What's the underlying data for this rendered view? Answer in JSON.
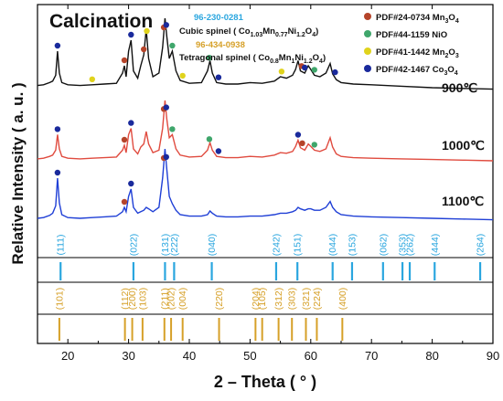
{
  "chart_data": {
    "type": "line",
    "title": "Calcination",
    "xlabel": "2 – Theta ( ° )",
    "ylabel": "Relative Intensity ( a. u. )",
    "xlim": [
      15,
      90
    ],
    "x_ticks": [
      20,
      30,
      40,
      50,
      60,
      70,
      80,
      90
    ],
    "grid": false,
    "series": [
      {
        "name": "900℃",
        "color": "#111111",
        "x": [
          15,
          16,
          17,
          17.5,
          18,
          18.3,
          18.6,
          19,
          20,
          22,
          24,
          26,
          28,
          29,
          29.3,
          29.6,
          30,
          30.4,
          30.8,
          31.5,
          32,
          32.5,
          32.9,
          33.3,
          34,
          35,
          35.6,
          36,
          36.3,
          36.7,
          37.2,
          37.8,
          38.5,
          40,
          42,
          43,
          43.4,
          43.8,
          44.5,
          46,
          48,
          50,
          52,
          54,
          55,
          56,
          57,
          57.5,
          57.9,
          58.3,
          59,
          59.6,
          60,
          60.6,
          61.5,
          62.5,
          63.2,
          63.6,
          64.2,
          65,
          67,
          70,
          75,
          80,
          85,
          90
        ],
        "values": [
          0.08,
          0.09,
          0.12,
          0.14,
          0.22,
          0.55,
          0.25,
          0.12,
          0.09,
          0.08,
          0.09,
          0.1,
          0.11,
          0.25,
          0.35,
          0.2,
          0.55,
          0.7,
          0.28,
          0.18,
          0.35,
          0.5,
          0.85,
          0.45,
          0.2,
          0.25,
          0.6,
          1.0,
          0.75,
          0.45,
          0.55,
          0.28,
          0.15,
          0.11,
          0.12,
          0.28,
          0.42,
          0.25,
          0.12,
          0.1,
          0.1,
          0.12,
          0.11,
          0.14,
          0.2,
          0.18,
          0.22,
          0.3,
          0.42,
          0.28,
          0.25,
          0.35,
          0.3,
          0.22,
          0.2,
          0.25,
          0.38,
          0.24,
          0.16,
          0.12,
          0.1,
          0.09,
          0.07,
          0.05,
          0.04,
          0.03
        ]
      },
      {
        "name": "1000℃",
        "color": "#e04b3f",
        "x": [
          15,
          16,
          17,
          17.5,
          18,
          18.3,
          18.6,
          19,
          20,
          22,
          24,
          26,
          28,
          29,
          29.3,
          29.6,
          30,
          30.4,
          30.8,
          31.5,
          32,
          32.5,
          32.9,
          33.3,
          34,
          35,
          35.6,
          36,
          36.3,
          36.7,
          37.2,
          37.8,
          38.5,
          40,
          42,
          43,
          43.4,
          43.8,
          44.5,
          46,
          48,
          50,
          52,
          54,
          55,
          56,
          57,
          57.5,
          57.9,
          58.3,
          59,
          59.6,
          60,
          60.6,
          61.5,
          62.5,
          63.2,
          63.6,
          64.2,
          65,
          67,
          70,
          75,
          80,
          85,
          90
        ],
        "values": [
          0.06,
          0.07,
          0.1,
          0.12,
          0.2,
          0.45,
          0.22,
          0.1,
          0.07,
          0.06,
          0.07,
          0.08,
          0.09,
          0.2,
          0.28,
          0.16,
          0.45,
          0.55,
          0.22,
          0.14,
          0.25,
          0.3,
          0.5,
          0.3,
          0.16,
          0.2,
          0.55,
          1.0,
          0.7,
          0.4,
          0.45,
          0.22,
          0.12,
          0.09,
          0.1,
          0.2,
          0.32,
          0.2,
          0.1,
          0.08,
          0.08,
          0.1,
          0.09,
          0.12,
          0.16,
          0.15,
          0.18,
          0.26,
          0.36,
          0.24,
          0.2,
          0.3,
          0.26,
          0.2,
          0.18,
          0.22,
          0.4,
          0.25,
          0.14,
          0.1,
          0.08,
          0.07,
          0.06,
          0.05,
          0.04,
          0.03
        ]
      },
      {
        "name": "1100℃",
        "color": "#1f3fd6",
        "x": [
          15,
          16,
          17,
          17.5,
          18,
          18.3,
          18.6,
          19,
          20,
          22,
          24,
          26,
          28,
          29,
          29.3,
          29.6,
          30,
          30.4,
          30.8,
          31.5,
          32,
          32.5,
          32.9,
          33.3,
          34,
          35,
          35.6,
          36,
          36.3,
          36.7,
          37.2,
          37.8,
          38.5,
          40,
          42,
          43,
          43.4,
          43.8,
          44.5,
          46,
          48,
          50,
          52,
          54,
          55,
          56,
          57,
          57.5,
          57.9,
          58.3,
          59,
          59.6,
          60,
          60.6,
          61.5,
          62.5,
          63.2,
          63.6,
          64.2,
          65,
          67,
          70,
          75,
          80,
          85,
          90
        ],
        "values": [
          0.05,
          0.06,
          0.09,
          0.12,
          0.22,
          0.6,
          0.26,
          0.1,
          0.06,
          0.05,
          0.06,
          0.07,
          0.08,
          0.14,
          0.2,
          0.14,
          0.35,
          0.45,
          0.2,
          0.12,
          0.14,
          0.16,
          0.2,
          0.18,
          0.14,
          0.2,
          0.6,
          1.0,
          0.72,
          0.35,
          0.25,
          0.16,
          0.1,
          0.08,
          0.08,
          0.1,
          0.15,
          0.12,
          0.08,
          0.07,
          0.07,
          0.08,
          0.08,
          0.1,
          0.12,
          0.12,
          0.14,
          0.16,
          0.2,
          0.18,
          0.16,
          0.18,
          0.18,
          0.16,
          0.16,
          0.2,
          0.28,
          0.2,
          0.14,
          0.1,
          0.08,
          0.07,
          0.06,
          0.05,
          0.04,
          0.03
        ]
      }
    ],
    "legend_top_left": [
      {
        "text": "96-230-0281",
        "color": "#2aa6df"
      },
      {
        "text_pre": "Cubic spinel ( Co",
        "text_sub1": "1.03",
        "text_mid1": "Mn",
        "text_sub2": "0.77",
        "text_mid2": "Ni",
        "text_sub3": "1.2",
        "text_mid3": "O",
        "text_sub4": "4",
        "text_post": ")",
        "color": "#111111"
      },
      {
        "text": "96-434-0938",
        "color": "#d6a028"
      },
      {
        "text_pre": "Tetragonal spinel ( Co",
        "text_sub1": "0.8",
        "text_mid1": "Mn",
        "text_sub2": "1",
        "text_mid2": "Ni",
        "text_sub3": "1.2",
        "text_mid3": "O",
        "text_sub4": "4",
        "text_post": ")",
        "color": "#111111"
      }
    ],
    "legend_markers": [
      {
        "text": "PDF#24-0734 Mn",
        "sub": "3",
        "tail": "O",
        "sub2": "4",
        "color": "#b5442a"
      },
      {
        "text": "PDF#44-1159 NiO",
        "sub": "",
        "tail": "",
        "sub2": "",
        "color": "#3fa66b"
      },
      {
        "text": "PDF#41-1442 Mn",
        "sub": "2",
        "tail": "O",
        "sub2": "3",
        "color": "#e0d31c"
      },
      {
        "text": "PDF#42-1467 Co",
        "sub": "3",
        "tail": "O",
        "sub2": "4",
        "color": "#1a2a9c"
      }
    ],
    "markers": [
      {
        "series": 0,
        "x": 18.3,
        "color": "#1a2a9c"
      },
      {
        "series": 0,
        "x": 24.0,
        "color": "#e0d31c"
      },
      {
        "series": 0,
        "x": 29.3,
        "color": "#b5442a"
      },
      {
        "series": 0,
        "x": 30.4,
        "color": "#1a2a9c"
      },
      {
        "series": 0,
        "x": 32.5,
        "color": "#b5442a"
      },
      {
        "series": 0,
        "x": 33.0,
        "color": "#e0d31c"
      },
      {
        "series": 0,
        "x": 35.8,
        "color": "#b5442a"
      },
      {
        "series": 0,
        "x": 36.2,
        "color": "#1a2a9c"
      },
      {
        "series": 0,
        "x": 37.2,
        "color": "#3fa66b"
      },
      {
        "series": 0,
        "x": 38.9,
        "color": "#e0d31c"
      },
      {
        "series": 0,
        "x": 43.3,
        "color": "#3fa66b"
      },
      {
        "series": 0,
        "x": 44.8,
        "color": "#1a2a9c"
      },
      {
        "series": 0,
        "x": 55.2,
        "color": "#e0d31c"
      },
      {
        "series": 0,
        "x": 58.5,
        "color": "#b5442a"
      },
      {
        "series": 0,
        "x": 59.0,
        "color": "#1a2a9c"
      },
      {
        "series": 0,
        "x": 60.6,
        "color": "#3fa66b"
      },
      {
        "series": 0,
        "x": 64.0,
        "color": "#1a2a9c"
      },
      {
        "series": 1,
        "x": 18.3,
        "color": "#1a2a9c"
      },
      {
        "series": 1,
        "x": 29.3,
        "color": "#b5442a"
      },
      {
        "series": 1,
        "x": 30.4,
        "color": "#1a2a9c"
      },
      {
        "series": 1,
        "x": 35.8,
        "color": "#b5442a"
      },
      {
        "series": 1,
        "x": 36.2,
        "color": "#1a2a9c"
      },
      {
        "series": 1,
        "x": 37.2,
        "color": "#3fa66b"
      },
      {
        "series": 1,
        "x": 43.3,
        "color": "#3fa66b"
      },
      {
        "series": 1,
        "x": 44.8,
        "color": "#1a2a9c"
      },
      {
        "series": 1,
        "x": 57.9,
        "color": "#1a2a9c"
      },
      {
        "series": 1,
        "x": 58.6,
        "color": "#b5442a"
      },
      {
        "series": 1,
        "x": 60.6,
        "color": "#3fa66b"
      },
      {
        "series": 2,
        "x": 18.3,
        "color": "#1a2a9c"
      },
      {
        "series": 2,
        "x": 29.3,
        "color": "#b5442a"
      },
      {
        "series": 2,
        "x": 30.4,
        "color": "#1a2a9c"
      },
      {
        "series": 2,
        "x": 35.8,
        "color": "#b5442a"
      },
      {
        "series": 2,
        "x": 36.2,
        "color": "#1a2a9c"
      }
    ],
    "cubic_reflections": [
      {
        "x": 18.8,
        "label": "(111)"
      },
      {
        "x": 30.8,
        "label": "(022)"
      },
      {
        "x": 36.0,
        "label": "(131)"
      },
      {
        "x": 37.5,
        "label": "(222)"
      },
      {
        "x": 43.7,
        "label": "(040)"
      },
      {
        "x": 54.3,
        "label": "(242)"
      },
      {
        "x": 57.8,
        "label": "(151)"
      },
      {
        "x": 63.6,
        "label": "(044)"
      },
      {
        "x": 66.8,
        "label": "(153)"
      },
      {
        "x": 71.9,
        "label": "(062)"
      },
      {
        "x": 75.1,
        "label": "(353)"
      },
      {
        "x": 76.3,
        "label": "(262)"
      },
      {
        "x": 80.4,
        "label": "(444)"
      },
      {
        "x": 87.9,
        "label": "(264)"
      }
    ],
    "tetragonal_reflections": [
      {
        "x": 18.6,
        "label": "(101)"
      },
      {
        "x": 29.4,
        "label": "(112)"
      },
      {
        "x": 30.6,
        "label": "(200)"
      },
      {
        "x": 32.3,
        "label": "(103)"
      },
      {
        "x": 35.9,
        "label": "(211)"
      },
      {
        "x": 37.0,
        "label": "(202)"
      },
      {
        "x": 38.9,
        "label": "(004)"
      },
      {
        "x": 44.9,
        "label": "(220)"
      },
      {
        "x": 50.9,
        "label": "(204)"
      },
      {
        "x": 52.0,
        "label": "(105)"
      },
      {
        "x": 54.7,
        "label": "(312)"
      },
      {
        "x": 56.9,
        "label": "(303)"
      },
      {
        "x": 59.2,
        "label": "(321)"
      },
      {
        "x": 61.0,
        "label": "(224)"
      },
      {
        "x": 65.2,
        "label": "(400)"
      }
    ],
    "colors": {
      "cubic_ref": "#2aa6df",
      "tetragonal_ref": "#d6a028"
    }
  }
}
